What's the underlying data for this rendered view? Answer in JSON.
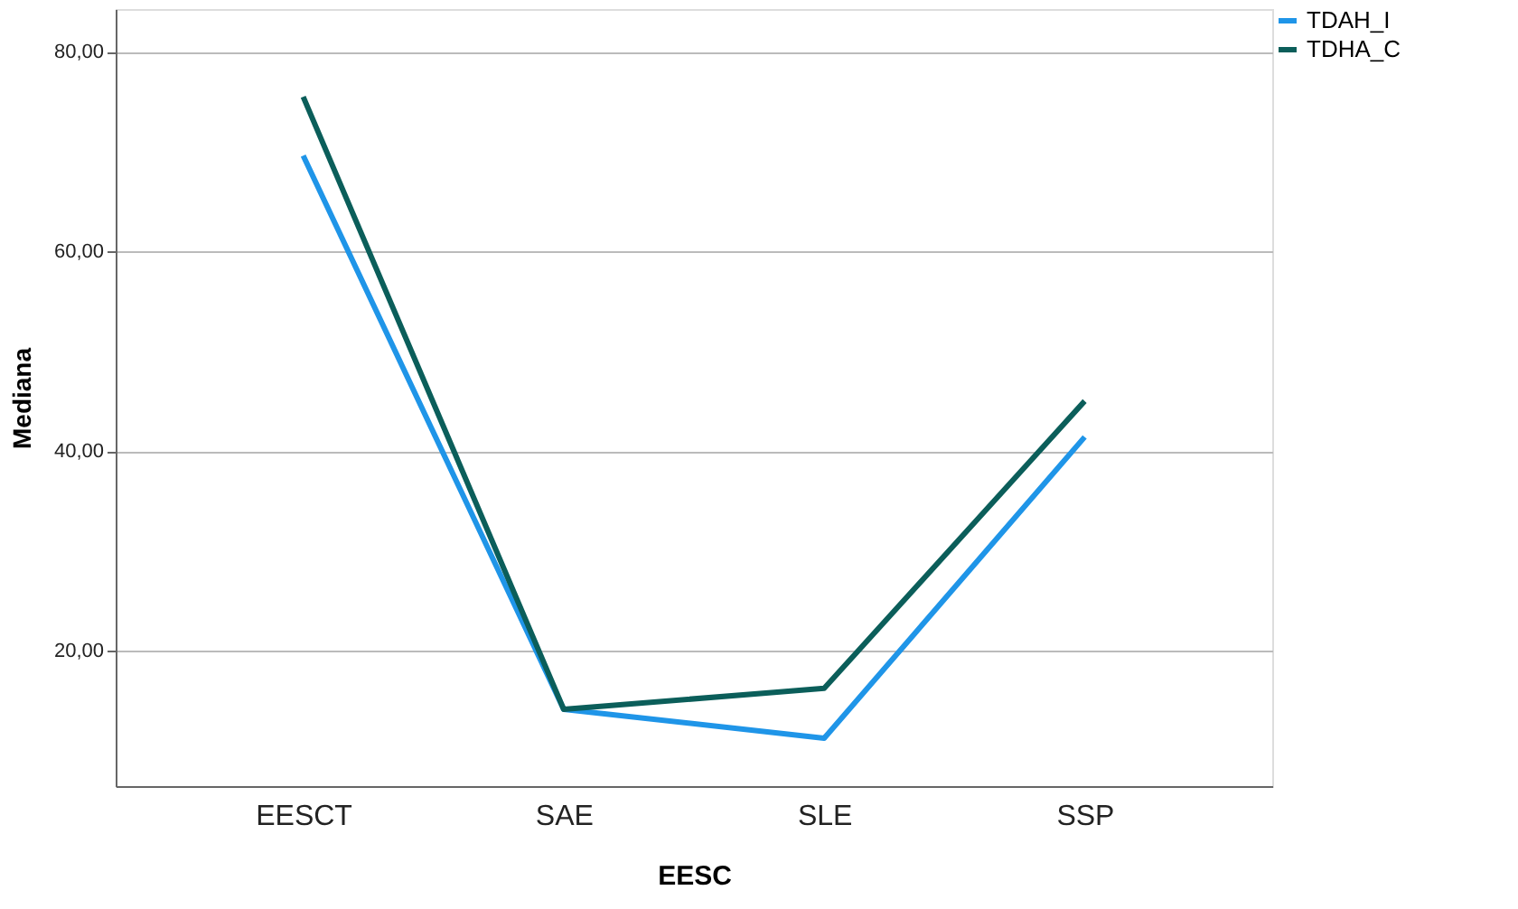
{
  "chart_data": {
    "type": "line",
    "xlabel": "EESC",
    "ylabel": "Mediana",
    "categories": [
      "EESCT",
      "SAE",
      "SLE",
      "SSP"
    ],
    "series": [
      {
        "name": "TDAH_I",
        "color": "#1f95e8",
        "values": [
          69.6,
          14.1,
          11.2,
          41.4
        ]
      },
      {
        "name": "TDHA_C",
        "color": "#0b5e5a",
        "values": [
          75.5,
          14.1,
          16.2,
          45.0
        ]
      }
    ],
    "ylim": [
      6.4,
      84.3
    ],
    "yticks": [
      {
        "value": 20,
        "label": "20,00"
      },
      {
        "value": 40,
        "label": "40,00"
      },
      {
        "value": 60,
        "label": "60,00"
      },
      {
        "value": 80,
        "label": "80,00"
      }
    ],
    "grid": "y",
    "legend": "top right",
    "marker": "none",
    "line_style": "solid"
  }
}
